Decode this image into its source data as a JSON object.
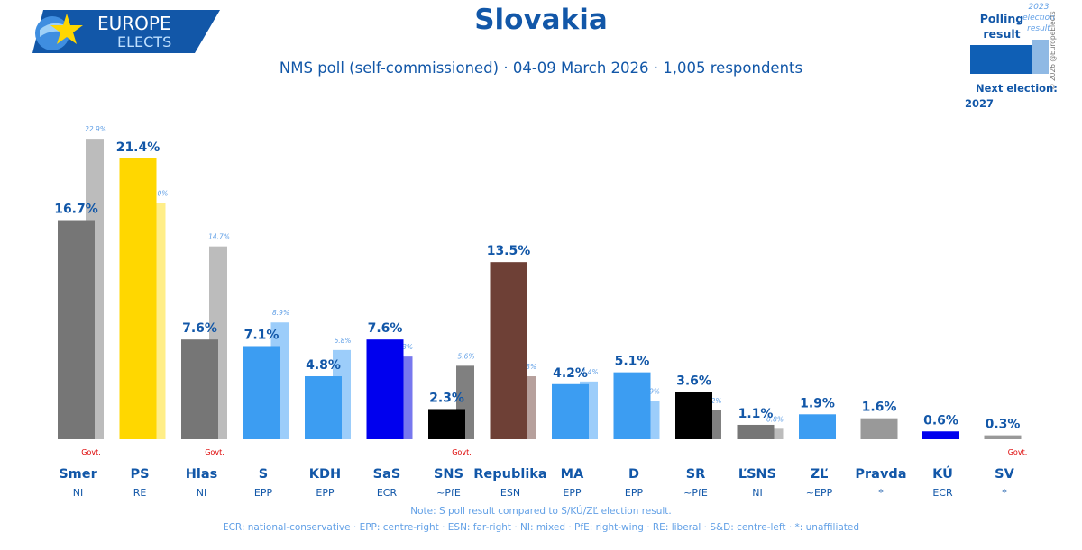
{
  "title": "Slovakia",
  "subtitle": "NMS poll (self-commissioned) · 04-09 March 2026 · 1,005 respondents",
  "logo": {
    "line1": "EUROPE",
    "line2": "ELECTS"
  },
  "legend": {
    "polling_label": "Polling result",
    "election_label": "2023 election result",
    "copyright": "© 2026 @EuropeElects",
    "next_election_label": "Next election:",
    "next_election_year": "2027",
    "polling_color": "#0f5fb5",
    "election_color": "#8fb9e4"
  },
  "notes": {
    "line1": "Note: S poll result compared to S/KÚ/ZĽ election result.",
    "line2": "ECR: national-conservative · EPP: centre-right · ESN: far-right · NI: mixed · PfE: right-wing · RE: liberal · S&D: centre-left · *: unaffiliated"
  },
  "chart_data": {
    "type": "bar",
    "ylim": [
      0,
      24
    ],
    "categories": [
      "Smer",
      "PS",
      "Hlas",
      "S",
      "KDH",
      "SaS",
      "SNS",
      "Republika",
      "MA",
      "D",
      "SR",
      "ĽSNS",
      "ZĽ",
      "Pravda",
      "KÚ",
      "SV"
    ],
    "groups": [
      "NI",
      "RE",
      "NI",
      "EPP",
      "EPP",
      "ECR",
      "~PfE",
      "ESN",
      "EPP",
      "EPP",
      "~PfE",
      "NI",
      "~EPP",
      "*",
      "ECR",
      "*"
    ],
    "series": [
      {
        "name": "Polling result",
        "values": [
          16.7,
          21.4,
          7.6,
          7.1,
          4.8,
          7.6,
          2.3,
          13.5,
          4.2,
          5.1,
          3.6,
          1.1,
          1.9,
          1.6,
          0.6,
          0.3
        ],
        "labels": [
          "16.7%",
          "21.4%",
          "7.6%",
          "7.1%",
          "4.8%",
          "7.6%",
          "2.3%",
          "13.5%",
          "4.2%",
          "5.1%",
          "3.6%",
          "1.1%",
          "1.9%",
          "1.6%",
          "0.6%",
          "0.3%"
        ]
      },
      {
        "name": "2023 election result",
        "values": [
          22.9,
          18.0,
          14.7,
          8.9,
          6.8,
          6.3,
          5.6,
          4.8,
          4.4,
          2.9,
          2.2,
          0.8,
          null,
          null,
          null,
          null
        ],
        "labels": [
          "22.9%",
          "18.0%",
          "14.7%",
          "8.9%",
          "6.8%",
          "6.3%",
          "5.6%",
          "4.8%",
          "4.4%",
          "2.9%",
          "2.2%",
          "0.8%",
          "",
          "",
          "",
          ""
        ]
      }
    ],
    "govt_label": "Govt.",
    "govt": [
      true,
      false,
      true,
      false,
      false,
      false,
      true,
      false,
      false,
      false,
      false,
      false,
      false,
      false,
      false,
      true
    ],
    "colors": [
      "#767676",
      "#ffd700",
      "#767676",
      "#3c9df2",
      "#3c9df2",
      "#0000ee",
      "#000000",
      "#6e4036",
      "#3c9df2",
      "#3c9df2",
      "#000000",
      "#767676",
      "#3c9df2",
      "#999999",
      "#0000ee",
      "#999999"
    ],
    "prev_colors": [
      "#bcbcbc",
      "#ffee88",
      "#bcbcbc",
      "#9ccdfa",
      "#9ccdfa",
      "#7777ee",
      "#808080",
      "#b6a09c",
      "#9ccdfa",
      "#9ccdfa",
      "#808080",
      "#bcbcbc",
      null,
      null,
      null,
      null
    ],
    "grid": false,
    "legend_position": "top-right"
  }
}
